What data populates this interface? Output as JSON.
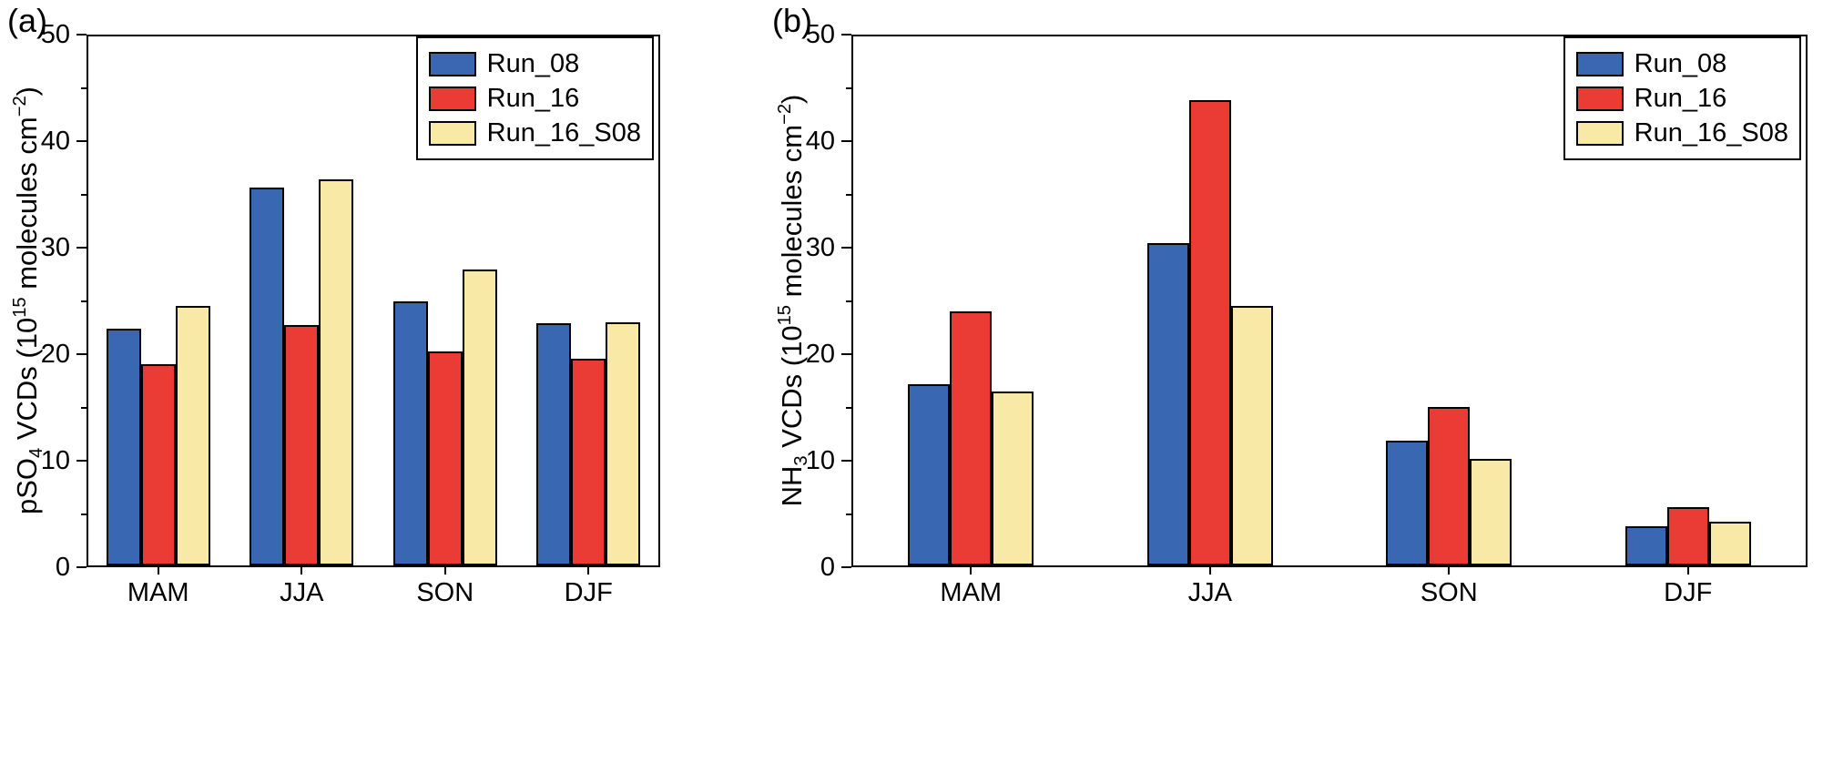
{
  "chart_data": [
    {
      "type": "bar",
      "panel_label": "(a)",
      "title": "",
      "xlabel": "",
      "ylabel": "pSO4 VCDs (10^15 molecules cm^-2)",
      "ylabel_parts": {
        "pre": "pSO",
        "sub": "4",
        "mid": " VCDs (10",
        "sup1": "15",
        "mid2": " molecules cm",
        "sup2": "−2",
        "post": ")"
      },
      "categories": [
        "MAM",
        "JJA",
        "SON",
        "DJF"
      ],
      "series": [
        {
          "name": "Run_08",
          "color": "#3a67b2",
          "values": [
            22.4,
            35.7,
            25.0,
            22.9
          ]
        },
        {
          "name": "Run_16",
          "color": "#ea3b34",
          "values": [
            19.0,
            22.7,
            20.2,
            19.5
          ]
        },
        {
          "name": "Run_16_S08",
          "color": "#f8e9a6",
          "values": [
            24.5,
            36.5,
            28.0,
            23.0
          ]
        }
      ],
      "ylim": [
        0,
        50
      ],
      "yticks": [
        0,
        10,
        20,
        30,
        40,
        50
      ],
      "minor_yticks": [
        5,
        15,
        25,
        35,
        45
      ],
      "grid": false,
      "legend_position": "top-right",
      "legend_entries": [
        "Run_08",
        "Run_16",
        "Run_16_S08"
      ]
    },
    {
      "type": "bar",
      "panel_label": "(b)",
      "title": "",
      "xlabel": "",
      "ylabel": "NH3 VCDs (10^15 molecules cm^-2)",
      "ylabel_parts": {
        "pre": "NH",
        "sub": "3",
        "mid": " VCDs (10",
        "sup1": "15",
        "mid2": " molecules cm",
        "sup2": "−2",
        "post": ")"
      },
      "categories": [
        "MAM",
        "JJA",
        "SON",
        "DJF"
      ],
      "series": [
        {
          "name": "Run_08",
          "color": "#3a67b2",
          "values": [
            17.1,
            30.5,
            11.8,
            3.7
          ]
        },
        {
          "name": "Run_16",
          "color": "#ea3b34",
          "values": [
            24.0,
            44.0,
            15.0,
            5.5
          ]
        },
        {
          "name": "Run_16_S08",
          "color": "#f8e9a6",
          "values": [
            16.4,
            24.5,
            10.1,
            4.1
          ]
        }
      ],
      "ylim": [
        0,
        50
      ],
      "yticks": [
        0,
        10,
        20,
        30,
        40,
        50
      ],
      "minor_yticks": [
        5,
        15,
        25,
        35,
        45
      ],
      "grid": false,
      "legend_position": "top-right",
      "legend_entries": [
        "Run_08",
        "Run_16",
        "Run_16_S08"
      ]
    }
  ]
}
